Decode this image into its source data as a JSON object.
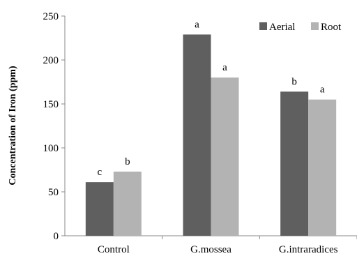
{
  "chart_data": {
    "type": "bar",
    "title": "",
    "xlabel": "",
    "ylabel": "Concentration of Iron (ppm)",
    "ylim": [
      0,
      250
    ],
    "yticks": [
      0,
      50,
      100,
      150,
      200,
      250
    ],
    "categories": [
      "Control",
      "G.mossea",
      "G.intraradices"
    ],
    "series": [
      {
        "name": "Aerial",
        "color": "#5f5f5f",
        "values": [
          61,
          229,
          164
        ],
        "labels": [
          "c",
          "a",
          "b"
        ]
      },
      {
        "name": "Root",
        "color": "#b3b3b3",
        "values": [
          73,
          180,
          155
        ],
        "labels": [
          "b",
          "a",
          "a"
        ]
      }
    ],
    "grid": false,
    "legend_position": "top-right"
  }
}
